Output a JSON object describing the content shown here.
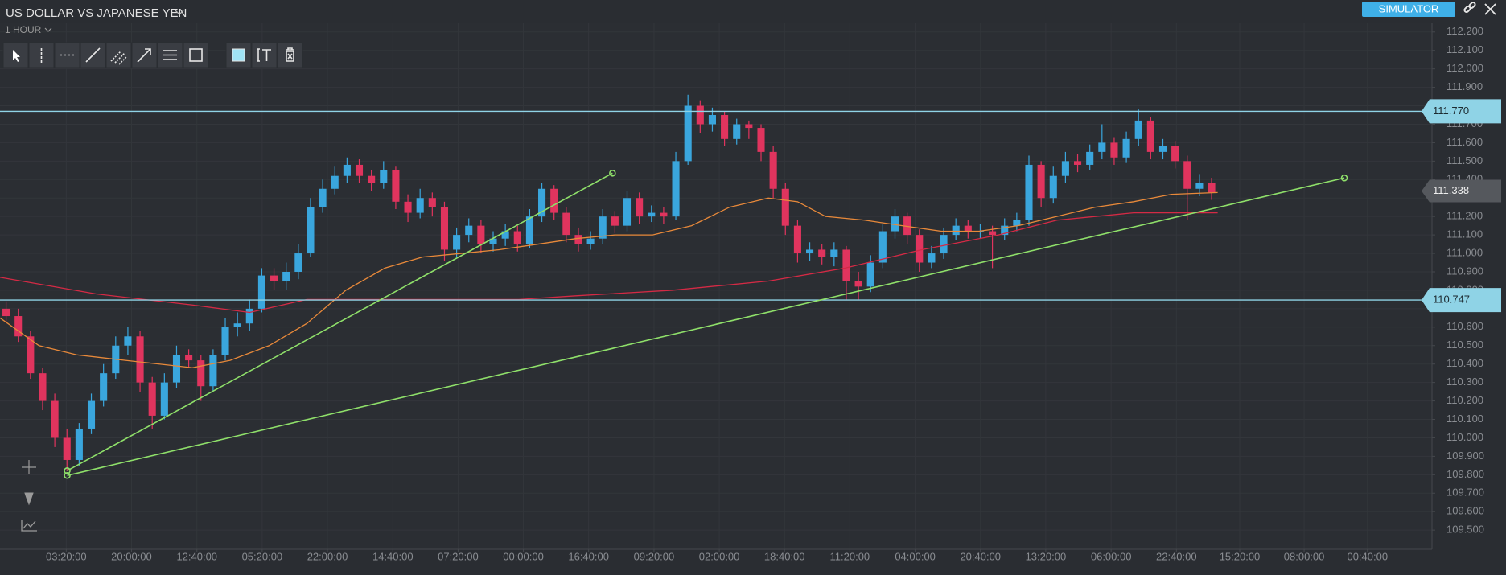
{
  "header": {
    "title": "US DOLLAR VS JAPANESE YEN",
    "timeframe": "1 HOUR",
    "mode_button": "SIMULATOR"
  },
  "chart_data": {
    "type": "candlestick",
    "x": [
      0.5,
      1.5,
      2.5,
      3.5,
      4.5,
      5.5,
      6.5,
      7.5,
      8.5,
      9.5,
      10.5,
      11.5,
      12.5,
      13.5,
      14.5,
      15.5,
      16.5,
      17.5,
      18.5,
      19.5,
      20.5,
      21.5,
      22.5,
      23.5,
      24.5,
      25.5,
      26.5,
      27.5,
      28.5,
      29.5,
      30.5,
      31.5,
      32.5,
      33.5,
      34.5,
      35.5,
      36.5,
      37.5,
      38.5,
      39.5,
      40.5,
      41.5,
      42.5,
      43.5,
      44.5,
      45.5,
      46.5,
      47.5,
      48.5,
      49.5,
      50.5,
      51.5,
      52.5,
      53.5,
      54.5,
      55.5,
      56.5,
      57.5,
      58.5,
      59.5,
      60.5,
      61.5,
      62.5,
      63.5,
      64.5,
      65.5,
      66.5,
      67.5,
      68.5,
      69.5,
      70.5,
      71.5,
      72.5,
      73.5,
      74.5,
      75.5,
      76.5,
      77.5,
      78.5,
      79.5,
      80.5,
      81.5,
      82.5,
      83.5,
      84.5,
      85.5,
      86.5,
      87.5,
      88.5,
      89.5,
      90.5,
      91.5,
      92.5,
      93.5,
      94.5,
      95.5,
      96.5,
      97.5,
      98.5,
      99.5
    ],
    "open": [
      110.7,
      110.66,
      110.55,
      110.35,
      110.2,
      110.0,
      109.88,
      110.05,
      110.2,
      110.35,
      110.5,
      110.55,
      110.3,
      110.12,
      110.3,
      110.45,
      110.42,
      110.28,
      110.45,
      110.6,
      110.62,
      110.7,
      110.88,
      110.85,
      110.9,
      111.0,
      111.25,
      111.35,
      111.42,
      111.48,
      111.42,
      111.38,
      111.45,
      111.28,
      111.22,
      111.3,
      111.25,
      111.02,
      111.1,
      111.15,
      111.05,
      111.08,
      111.12,
      111.05,
      111.2,
      111.35,
      111.22,
      111.1,
      111.05,
      111.08,
      111.2,
      111.15,
      111.3,
      111.2,
      111.22,
      111.2,
      111.5,
      111.8,
      111.7,
      111.75,
      111.62,
      111.7,
      111.68,
      111.55,
      111.35,
      111.15,
      111.0,
      111.02,
      110.98,
      111.02,
      110.85,
      110.82,
      110.95,
      111.12,
      111.2,
      111.1,
      110.95,
      111.0,
      111.1,
      111.15,
      111.12,
      111.12,
      111.1,
      111.15,
      111.18,
      111.48,
      111.3,
      111.42,
      111.5,
      111.48,
      111.55,
      111.6,
      111.52,
      111.62,
      111.72,
      111.55,
      111.58,
      111.5,
      111.35,
      111.38
    ],
    "high": [
      110.74,
      110.7,
      110.58,
      110.38,
      110.24,
      110.05,
      110.08,
      110.24,
      110.4,
      110.55,
      110.6,
      110.58,
      110.33,
      110.35,
      110.5,
      110.48,
      110.45,
      110.48,
      110.65,
      110.68,
      110.75,
      110.92,
      110.92,
      110.95,
      111.05,
      111.3,
      111.4,
      111.47,
      111.52,
      111.51,
      111.45,
      111.5,
      111.47,
      111.32,
      111.35,
      111.33,
      111.28,
      111.14,
      111.19,
      111.18,
      111.12,
      111.16,
      111.15,
      111.24,
      111.38,
      111.37,
      111.25,
      111.14,
      111.12,
      111.24,
      111.23,
      111.34,
      111.33,
      111.26,
      111.25,
      111.55,
      111.86,
      111.83,
      111.79,
      111.77,
      111.73,
      111.72,
      111.7,
      111.58,
      111.38,
      111.18,
      111.06,
      111.05,
      111.06,
      111.04,
      110.9,
      110.99,
      111.16,
      111.24,
      111.22,
      111.13,
      111.04,
      111.14,
      111.19,
      111.18,
      111.16,
      111.15,
      111.19,
      111.22,
      111.53,
      111.5,
      111.47,
      111.55,
      111.54,
      111.59,
      111.7,
      111.63,
      111.66,
      111.78,
      111.74,
      111.62,
      111.61,
      111.53,
      111.43,
      111.41
    ],
    "low": [
      110.62,
      110.52,
      110.32,
      110.15,
      109.95,
      109.82,
      109.85,
      110.02,
      110.17,
      110.32,
      110.45,
      110.25,
      110.05,
      110.1,
      110.27,
      110.38,
      110.2,
      110.25,
      110.42,
      110.55,
      110.58,
      110.68,
      110.8,
      110.8,
      110.86,
      110.98,
      111.22,
      111.32,
      111.38,
      111.38,
      111.34,
      111.35,
      111.24,
      111.17,
      111.19,
      111.2,
      110.96,
      110.98,
      111.06,
      111.0,
      111.01,
      111.04,
      111.01,
      111.03,
      111.17,
      111.18,
      111.06,
      111.01,
      111.02,
      111.05,
      111.11,
      111.12,
      111.16,
      111.17,
      111.16,
      111.18,
      111.48,
      111.65,
      111.66,
      111.58,
      111.59,
      111.62,
      111.5,
      111.3,
      111.1,
      110.95,
      110.96,
      110.94,
      110.93,
      110.75,
      110.75,
      110.79,
      110.92,
      111.08,
      111.05,
      110.9,
      110.92,
      110.97,
      111.07,
      111.08,
      111.08,
      110.92,
      111.07,
      111.12,
      111.15,
      111.25,
      111.27,
      111.38,
      111.44,
      111.45,
      111.51,
      111.48,
      111.49,
      111.58,
      111.51,
      111.51,
      111.46,
      111.18,
      111.31,
      111.29
    ],
    "close": [
      110.66,
      110.55,
      110.35,
      110.2,
      110.0,
      109.88,
      110.05,
      110.2,
      110.35,
      110.5,
      110.55,
      110.3,
      110.12,
      110.3,
      110.45,
      110.42,
      110.28,
      110.45,
      110.6,
      110.62,
      110.7,
      110.88,
      110.85,
      110.9,
      111.0,
      111.25,
      111.35,
      111.42,
      111.48,
      111.42,
      111.38,
      111.45,
      111.28,
      111.22,
      111.3,
      111.25,
      111.02,
      111.1,
      111.15,
      111.05,
      111.08,
      111.12,
      111.05,
      111.2,
      111.35,
      111.22,
      111.1,
      111.05,
      111.08,
      111.2,
      111.15,
      111.3,
      111.2,
      111.22,
      111.2,
      111.5,
      111.8,
      111.7,
      111.75,
      111.62,
      111.7,
      111.68,
      111.55,
      111.35,
      111.15,
      111.0,
      111.02,
      110.98,
      111.02,
      110.85,
      110.82,
      110.95,
      111.12,
      111.2,
      111.1,
      110.95,
      111.0,
      111.1,
      111.15,
      111.12,
      111.12,
      111.1,
      111.15,
      111.18,
      111.48,
      111.3,
      111.42,
      111.5,
      111.48,
      111.55,
      111.6,
      111.52,
      111.62,
      111.72,
      111.55,
      111.58,
      111.5,
      111.35,
      111.38,
      111.33
    ],
    "up_color": "#3aa6dd",
    "down_color": "#e0345e",
    "moving_averages": [
      {
        "color": "#e8893a",
        "x": [
          0,
          3.2,
          6.3,
          10.3,
          15.8,
          18.9,
          22.1,
          25.2,
          28.4,
          31.6,
          34.7,
          37.9,
          41,
          44.2,
          47.3,
          50.5,
          53.6,
          56.8,
          59.9,
          63.1,
          65.5,
          67.8,
          71,
          74.1,
          77.3,
          80.4,
          83.6,
          86.8,
          89.9,
          93.1,
          96.2,
          100
        ],
        "values": [
          110.65,
          110.5,
          110.45,
          110.42,
          110.38,
          110.42,
          110.5,
          110.62,
          110.8,
          110.92,
          110.98,
          111.0,
          111.02,
          111.05,
          111.08,
          111.1,
          111.1,
          111.15,
          111.25,
          111.3,
          111.28,
          111.2,
          111.18,
          111.15,
          111.12,
          111.12,
          111.15,
          111.2,
          111.25,
          111.28,
          111.32,
          111.33
        ]
      },
      {
        "color": "#d42a45",
        "x": [
          0,
          7.9,
          15.8,
          20.5,
          25.2,
          31.5,
          37.9,
          42.6,
          47.3,
          55.2,
          63.1,
          69.4,
          75.7,
          82,
          86.8,
          93.1,
          100
        ],
        "values": [
          110.87,
          110.78,
          110.72,
          110.68,
          110.75,
          110.75,
          110.75,
          110.75,
          110.77,
          110.8,
          110.85,
          110.92,
          111.02,
          111.1,
          111.18,
          111.22,
          111.22
        ]
      }
    ],
    "trendlines": [
      {
        "color": "#8fe06a",
        "x": [
          5.52,
          50.3
        ],
        "values": [
          109.822,
          111.435
        ]
      },
      {
        "color": "#8fe06a",
        "x": [
          5.52,
          110.4
        ],
        "values": [
          109.796,
          111.409
        ]
      }
    ],
    "price_lines": [
      {
        "value": 111.77,
        "label": "111.770"
      },
      {
        "value": 110.747,
        "label": "110.747"
      }
    ],
    "price_line_color": "#8fd3e6",
    "last_price": {
      "value": 111.338,
      "label": "111.338"
    },
    "xlim": [
      0,
      117.6
    ],
    "xticks": [
      {
        "value": 5.44,
        "label": "03:20:00"
      },
      {
        "value": 10.8,
        "label": "20:00:00"
      },
      {
        "value": 16.17,
        "label": "12:40:00"
      },
      {
        "value": 21.53,
        "label": "05:20:00"
      },
      {
        "value": 26.89,
        "label": "22:00:00"
      },
      {
        "value": 32.26,
        "label": "14:40:00"
      },
      {
        "value": 37.62,
        "label": "07:20:00"
      },
      {
        "value": 42.98,
        "label": "00:00:00"
      },
      {
        "value": 48.34,
        "label": "16:40:00"
      },
      {
        "value": 53.71,
        "label": "09:20:00"
      },
      {
        "value": 59.07,
        "label": "02:00:00"
      },
      {
        "value": 64.43,
        "label": "18:40:00"
      },
      {
        "value": 69.79,
        "label": "11:20:00"
      },
      {
        "value": 75.16,
        "label": "04:00:00"
      },
      {
        "value": 80.52,
        "label": "20:40:00"
      },
      {
        "value": 85.88,
        "label": "13:20:00"
      },
      {
        "value": 91.25,
        "label": "06:00:00"
      },
      {
        "value": 96.61,
        "label": "22:40:00"
      },
      {
        "value": 101.81,
        "label": "15:20:00"
      },
      {
        "value": 107.1,
        "label": "08:00:00"
      },
      {
        "value": 112.3,
        "label": "00:40:00"
      }
    ],
    "ylim": [
      109.396,
      112.247
    ],
    "yticks": [
      {
        "value": 109.5,
        "label": "109.500"
      },
      {
        "value": 109.6,
        "label": "109.600"
      },
      {
        "value": 109.7,
        "label": "109.700"
      },
      {
        "value": 109.8,
        "label": "109.800"
      },
      {
        "value": 109.9,
        "label": "109.900"
      },
      {
        "value": 110.0,
        "label": "110.000"
      },
      {
        "value": 110.1,
        "label": "110.100"
      },
      {
        "value": 110.2,
        "label": "110.200"
      },
      {
        "value": 110.3,
        "label": "110.300"
      },
      {
        "value": 110.4,
        "label": "110.400"
      },
      {
        "value": 110.5,
        "label": "110.500"
      },
      {
        "value": 110.6,
        "label": "110.600"
      },
      {
        "value": 110.7,
        "label": "110.700"
      },
      {
        "value": 110.8,
        "label": "110.800"
      },
      {
        "value": 110.9,
        "label": "110.900"
      },
      {
        "value": 111.0,
        "label": "111.000"
      },
      {
        "value": 111.1,
        "label": "111.100"
      },
      {
        "value": 111.2,
        "label": "111.200"
      },
      {
        "value": 111.3,
        "label": "111.300"
      },
      {
        "value": 111.4,
        "label": "111.400"
      },
      {
        "value": 111.5,
        "label": "111.500"
      },
      {
        "value": 111.6,
        "label": "111.600"
      },
      {
        "value": 111.7,
        "label": "111.700"
      },
      {
        "value": 111.8,
        "label": "111.800"
      },
      {
        "value": 111.9,
        "label": "111.900"
      },
      {
        "value": 112.0,
        "label": "112.000"
      },
      {
        "value": 112.1,
        "label": "112.100"
      },
      {
        "value": 112.2,
        "label": "112.200"
      }
    ],
    "grid": true
  }
}
